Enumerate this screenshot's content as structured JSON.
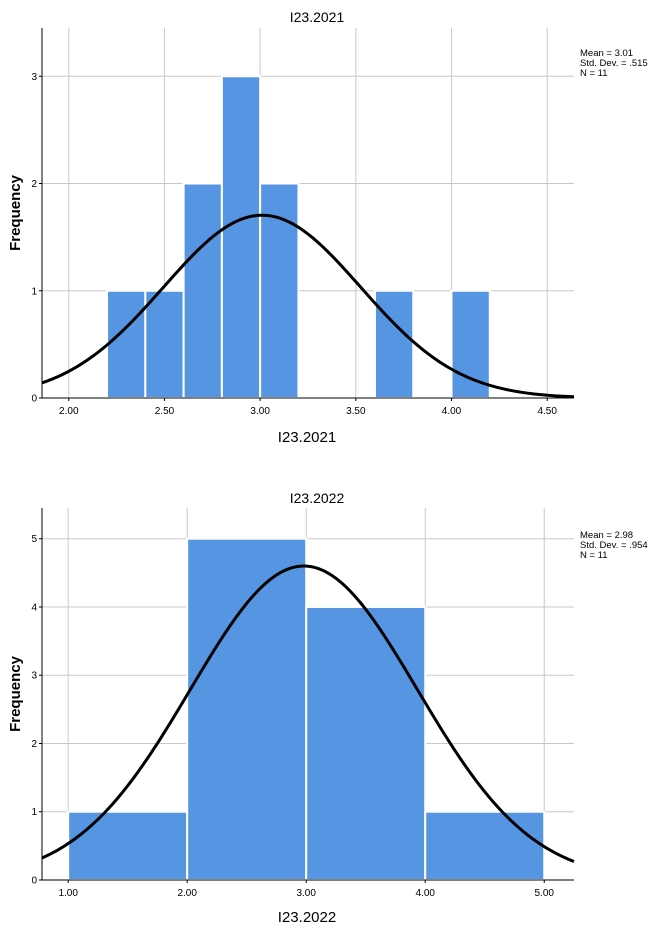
{
  "charts": {
    "color": "#5595E1",
    "curve_color": "#000000"
  },
  "chart_data": [
    {
      "type": "bar",
      "subtype": "histogram",
      "title": "I23.2021",
      "xlabel": "I23.2021",
      "ylabel": "Frequency",
      "bins": [
        {
          "start": 2.2,
          "end": 2.4,
          "count": 1
        },
        {
          "start": 2.4,
          "end": 2.6,
          "count": 1
        },
        {
          "start": 2.6,
          "end": 2.8,
          "count": 2
        },
        {
          "start": 2.8,
          "end": 3.0,
          "count": 3
        },
        {
          "start": 3.0,
          "end": 3.2,
          "count": 2
        },
        {
          "start": 3.6,
          "end": 3.8,
          "count": 1
        },
        {
          "start": 4.0,
          "end": 4.2,
          "count": 1
        }
      ],
      "xlim": [
        1.86,
        4.64
      ],
      "ylim": [
        0,
        3.45
      ],
      "x_ticks": [
        2.0,
        2.5,
        3.0,
        3.5,
        4.0,
        4.5
      ],
      "x_tick_labels": [
        "2.00",
        "2.50",
        "3.00",
        "3.50",
        "4.00",
        "4.50"
      ],
      "y_ticks": [
        0,
        1,
        2,
        3
      ],
      "y_tick_labels": [
        "0",
        "1",
        "2",
        "3"
      ],
      "mean": 3.01,
      "std": 0.515,
      "n": 11,
      "bin_width": 0.2,
      "stats_text": [
        "Mean = 3.01",
        "Std. Dev. = .515",
        "N = 11"
      ]
    },
    {
      "type": "bar",
      "subtype": "histogram",
      "title": "I23.2022",
      "xlabel": "I23.2022",
      "ylabel": "Frequency",
      "bins": [
        {
          "start": 1.0,
          "end": 2.0,
          "count": 1
        },
        {
          "start": 2.0,
          "end": 3.0,
          "count": 5
        },
        {
          "start": 3.0,
          "end": 4.0,
          "count": 4
        },
        {
          "start": 4.0,
          "end": 5.0,
          "count": 1
        }
      ],
      "xlim": [
        0.78,
        5.25
      ],
      "ylim": [
        0,
        5.45
      ],
      "x_ticks": [
        1,
        2,
        3,
        4,
        5
      ],
      "x_tick_labels": [
        "1.00",
        "2.00",
        "3.00",
        "4.00",
        "5.00"
      ],
      "y_ticks": [
        0,
        1,
        2,
        3,
        4,
        5
      ],
      "y_tick_labels": [
        "0",
        "1",
        "2",
        "3",
        "4",
        "5"
      ],
      "mean": 2.98,
      "std": 0.954,
      "n": 11,
      "bin_width": 1.0,
      "stats_text": [
        "Mean = 2.98",
        "Std. Dev. = .954",
        "N = 11"
      ]
    }
  ]
}
